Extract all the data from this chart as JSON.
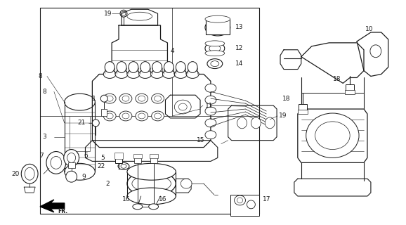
{
  "bg_color": "#ffffff",
  "line_color": "#1a1a1a",
  "text_color": "#1a1a1a",
  "figsize": [
    5.78,
    3.2
  ],
  "dpi": 100
}
